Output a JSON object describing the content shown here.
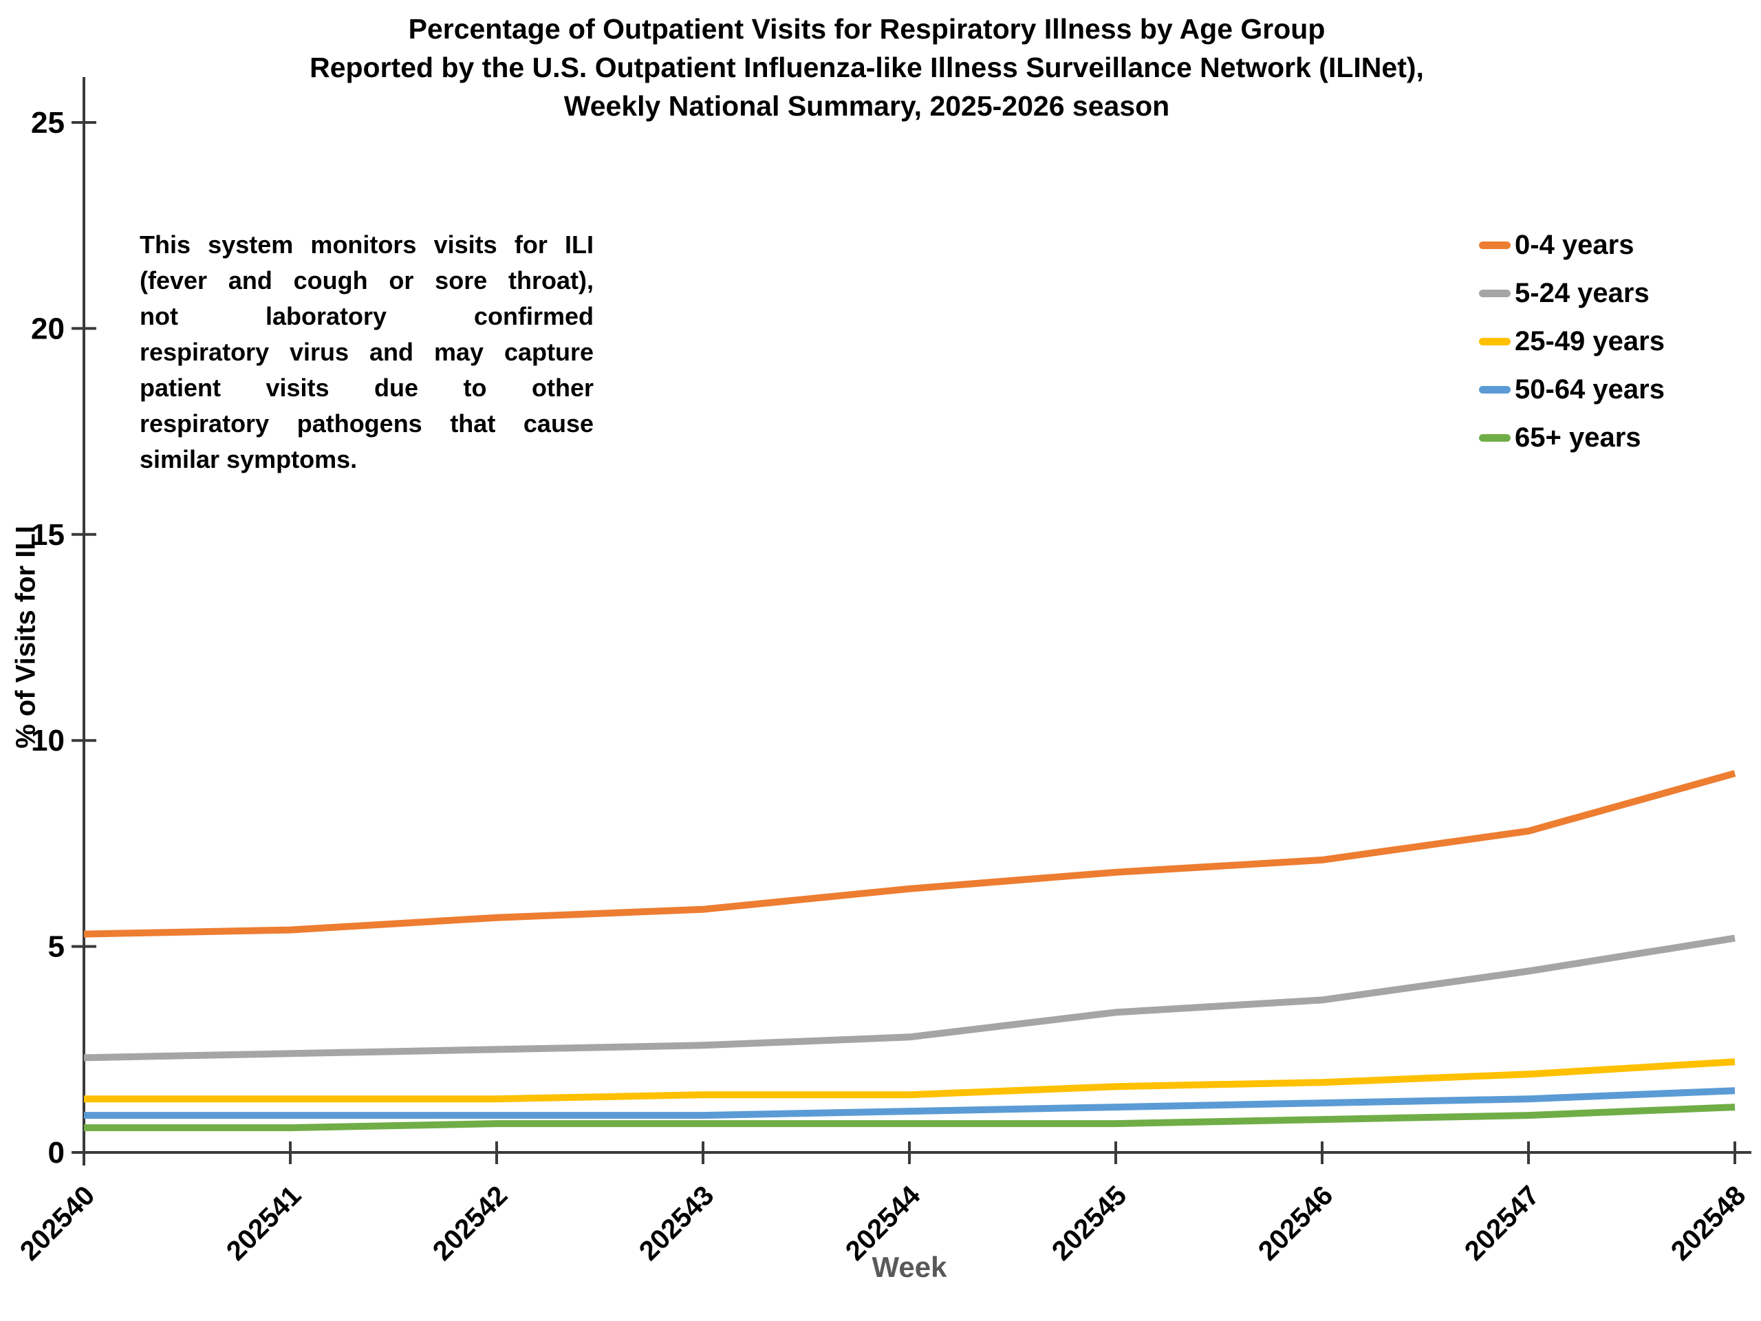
{
  "title": {
    "line1": "Percentage of Outpatient Visits for Respiratory Illness by Age Group",
    "line2": "Reported by the U.S. Outpatient Influenza-like Illness Surveillance Network (ILINet),",
    "line3": "Weekly National Summary, 2025-2026 season"
  },
  "note": {
    "lines": [
      "This system monitors visits for ILI",
      "(fever and cough or sore throat),",
      "not laboratory confirmed",
      "respiratory virus and may capture",
      "patient visits due to other",
      "respiratory pathogens that cause",
      "similar symptoms."
    ]
  },
  "axes": {
    "x_label": "Week",
    "y_label": "% of Visits for ILI",
    "y_ticks": [
      0,
      5,
      10,
      15,
      20,
      25
    ]
  },
  "colors": {
    "axis": "#3b3b3b",
    "tick_label": "#000000",
    "x_axis_title": "#595959",
    "background": "#ffffff"
  },
  "chart_data": {
    "type": "line",
    "title": "Percentage of Outpatient Visits for Respiratory Illness by Age Group Reported by the U.S. Outpatient Influenza-like Illness Surveillance Network (ILINet), Weekly National Summary, 2025-2026 season",
    "xlabel": "Week",
    "ylabel": "% of Visits for ILI",
    "ylim": [
      0,
      25
    ],
    "grid": false,
    "legend_position": "upper-right",
    "categories": [
      "202540",
      "202541",
      "202542",
      "202543",
      "202544",
      "202545",
      "202546",
      "202547",
      "202548"
    ],
    "series": [
      {
        "name": "0-4 years",
        "color": "#ED7D31",
        "values": [
          5.3,
          5.4,
          5.7,
          5.9,
          6.4,
          6.8,
          7.1,
          7.8,
          9.2
        ]
      },
      {
        "name": "5-24 years",
        "color": "#A5A5A5",
        "values": [
          2.3,
          2.4,
          2.5,
          2.6,
          2.8,
          3.4,
          3.7,
          4.4,
          5.2
        ]
      },
      {
        "name": "25-49 years",
        "color": "#FFC000",
        "values": [
          1.3,
          1.3,
          1.3,
          1.4,
          1.4,
          1.6,
          1.7,
          1.9,
          2.2
        ]
      },
      {
        "name": "50-64 years",
        "color": "#5B9BD5",
        "values": [
          0.9,
          0.9,
          0.9,
          0.9,
          1.0,
          1.1,
          1.2,
          1.3,
          1.5
        ]
      },
      {
        "name": "65+ years",
        "color": "#70AD47",
        "values": [
          0.6,
          0.6,
          0.7,
          0.7,
          0.7,
          0.7,
          0.8,
          0.9,
          1.1
        ]
      }
    ]
  }
}
